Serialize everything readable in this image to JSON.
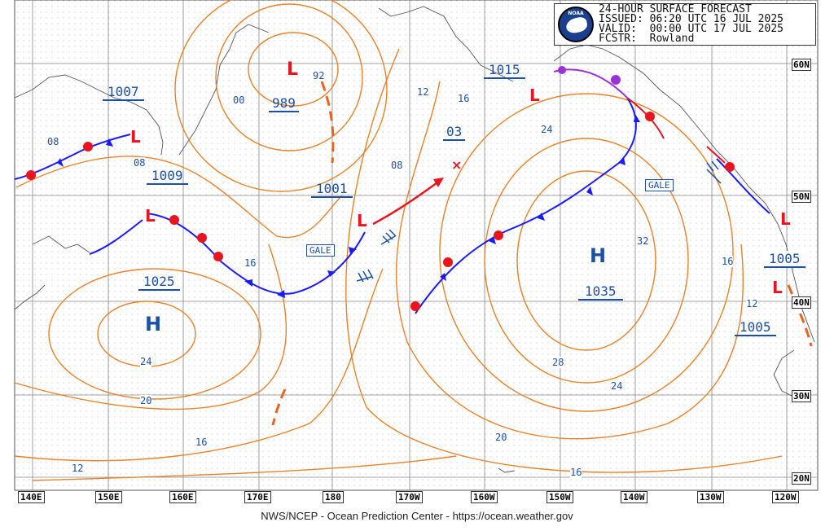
{
  "header": {
    "title": "24-HOUR SURFACE FORECAST",
    "issued": "ISSUED: 06:20 UTC 16 JUL 2025",
    "valid": "VALID:  00:00 UTC 17 JUL 2025",
    "forecaster": "FCSTR:  Rowland",
    "logo_text": "NOAA"
  },
  "footer": "NWS/NCEP - Ocean Prediction Center - https://ocean.weather.gov",
  "colors": {
    "isobar": "#e8822a",
    "pressure_label": "#1b4fa8",
    "cold_front": "#1a1aff",
    "warm_front": "#e8141e",
    "occluded": "#9a33d6",
    "low": "#e8141e",
    "high": "#1b4fa8"
  },
  "longitude_labels": [
    "140E",
    "150E",
    "160E",
    "170E",
    "180",
    "170W",
    "160W",
    "150W",
    "140W",
    "130W",
    "120W"
  ],
  "latitude_labels": [
    "60N",
    "50N",
    "40N",
    "30N",
    "20N"
  ],
  "pressure_centers": [
    {
      "type": "L",
      "value": "989"
    },
    {
      "type": "L",
      "value": "1007"
    },
    {
      "type": "L",
      "value": "1009"
    },
    {
      "type": "L",
      "value": "1001"
    },
    {
      "type": "L",
      "value": "1015"
    },
    {
      "type": "L",
      "value": "1005"
    },
    {
      "type": "L",
      "value": "1005"
    },
    {
      "type": "H",
      "value": "1025"
    },
    {
      "type": "H",
      "value": "1035"
    },
    {
      "type": "new",
      "value": "03"
    }
  ],
  "isobar_labels": [
    "92",
    "00",
    "08",
    "08",
    "12",
    "16",
    "08",
    "16",
    "24",
    "32",
    "16",
    "12",
    "24",
    "20",
    "16",
    "28",
    "24",
    "20",
    "16",
    "12"
  ],
  "warnings": [
    "GALE",
    "GALE"
  ]
}
